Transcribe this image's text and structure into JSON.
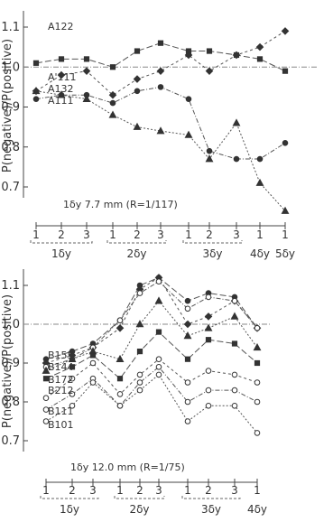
{
  "chart_data": [
    {
      "type": "line",
      "ylabel": "P(negative)/P(positive)",
      "ylim": [
        0.6,
        1.15
      ],
      "yticks": [
        "1.1",
        "1.0",
        "0.9",
        "0.8",
        "0.7"
      ],
      "categories": [
        "1",
        "2",
        "3",
        "1",
        "2",
        "3",
        "1",
        "2",
        "3",
        "1",
        "1"
      ],
      "groups": [
        {
          "label": "1δy",
          "count": 3
        },
        {
          "label": "2δy",
          "count": 3
        },
        {
          "label": "3δy",
          "count": 3
        },
        {
          "label": "4δy",
          "count": 1
        },
        {
          "label": "5δy",
          "count": 1
        }
      ],
      "annotation": "1δy 7.7 mm (R=1/117)",
      "reference_line": 1.0,
      "grid": false,
      "series": [
        {
          "name": "A122",
          "marker": "square",
          "values": [
            1.01,
            1.02,
            1.02,
            1.0,
            1.04,
            1.06,
            1.04,
            1.04,
            1.03,
            1.02,
            0.99
          ]
        },
        {
          "name": "A'111",
          "marker": "diamond",
          "values": [
            0.94,
            0.98,
            0.99,
            0.93,
            0.97,
            0.99,
            1.03,
            0.99,
            1.03,
            1.05,
            1.09
          ]
        },
        {
          "name": "A132",
          "marker": "circle",
          "values": [
            0.92,
            0.93,
            0.93,
            0.91,
            0.94,
            0.95,
            0.92,
            0.79,
            0.77,
            0.77,
            0.81
          ]
        },
        {
          "name": "A111",
          "marker": "triangle",
          "values": [
            0.94,
            0.93,
            0.92,
            0.88,
            0.85,
            0.84,
            0.83,
            0.77,
            0.86,
            0.71,
            0.64
          ]
        }
      ]
    },
    {
      "type": "line",
      "ylabel": "P(negative)/P(positive)",
      "ylim": [
        0.7,
        1.15
      ],
      "yticks": [
        "1.1",
        "1.0",
        "0.9",
        "0.8",
        "0.7"
      ],
      "categories": [
        "1",
        "2",
        "3",
        "1",
        "2",
        "3",
        "1",
        "2",
        "3",
        "1"
      ],
      "groups": [
        {
          "label": "1δy",
          "count": 3
        },
        {
          "label": "2δy",
          "count": 3
        },
        {
          "label": "3δy",
          "count": 3
        },
        {
          "label": "4δy",
          "count": 1
        }
      ],
      "annotation": "1δy 12.0 mm (R=1/75)",
      "reference_line": 1.0,
      "grid": false,
      "series": [
        {
          "name": "B155",
          "marker": "circle",
          "values": [
            0.91,
            0.93,
            0.95,
            1.01,
            1.1,
            1.12,
            1.06,
            1.08,
            1.07,
            0.99
          ]
        },
        {
          "name": "B144",
          "marker": "diamond",
          "values": [
            0.9,
            0.92,
            0.94,
            0.99,
            1.09,
            1.12,
            1.0,
            1.02,
            1.06,
            0.99
          ]
        },
        {
          "name": "B172",
          "marker": "circle",
          "values": [
            0.89,
            0.91,
            0.94,
            1.01,
            1.08,
            1.11,
            1.04,
            1.07,
            1.06,
            0.99
          ]
        },
        {
          "name": "B212",
          "marker": "triangle",
          "values": [
            0.88,
            0.91,
            0.93,
            0.91,
            1.0,
            1.06,
            0.97,
            0.99,
            1.02,
            0.94
          ]
        },
        {
          "name": "B111",
          "marker": "square",
          "values": [
            0.86,
            0.89,
            0.92,
            0.86,
            0.93,
            0.98,
            0.91,
            0.96,
            0.95,
            0.9
          ]
        },
        {
          "name": "B101",
          "marker": "circle",
          "values": [
            0.81,
            0.86,
            0.9,
            0.82,
            0.87,
            0.91,
            0.85,
            0.88,
            0.87,
            0.85
          ]
        },
        {
          "name": "",
          "marker": "circle",
          "values": [
            0.78,
            0.82,
            0.86,
            0.79,
            0.85,
            0.89,
            0.8,
            0.83,
            0.83,
            0.8
          ]
        },
        {
          "name": "",
          "marker": "circle",
          "values": [
            0.75,
            0.79,
            0.85,
            0.79,
            0.83,
            0.87,
            0.75,
            0.79,
            0.79,
            0.72
          ]
        }
      ]
    }
  ]
}
